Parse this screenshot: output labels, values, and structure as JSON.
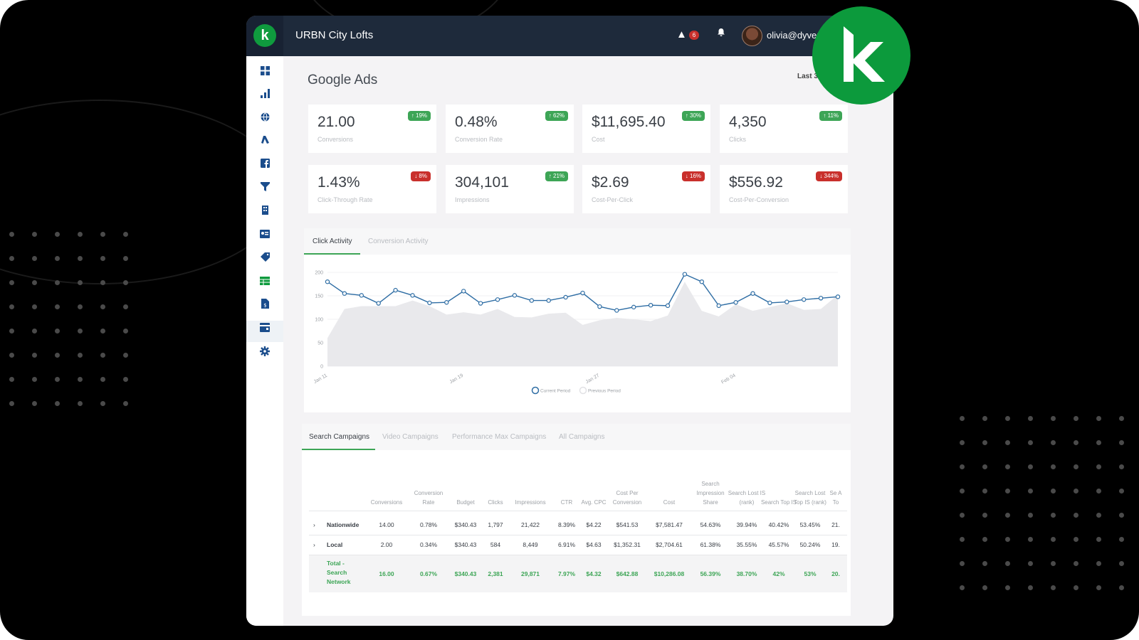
{
  "topbar": {
    "app_title": "URBN City Lofts",
    "alert_count": "6",
    "user_email": "olivia@dyver",
    "alert_icon": "warning-icon",
    "bell_icon": "bell-icon",
    "logo_letter": "k"
  },
  "sidebar": {
    "items": [
      "dashboard-icon",
      "bar-chart-icon",
      "globe-icon",
      "google-ads-icon",
      "facebook-icon",
      "funnel-icon",
      "building-icon",
      "contact-card-icon",
      "tag-icon",
      "table-icon",
      "invoice-icon",
      "storefront-icon",
      "gear-icon"
    ],
    "active_index": 9
  },
  "page": {
    "title": "Google Ads",
    "date_range": "Last 3"
  },
  "kpis": [
    {
      "value": "21.00",
      "label": "Conversions",
      "badge": "↑ 19%",
      "direction": "up"
    },
    {
      "value": "0.48%",
      "label": "Conversion Rate",
      "badge": "↑ 62%",
      "direction": "up"
    },
    {
      "value": "$11,695.40",
      "label": "Cost",
      "badge": "↑ 30%",
      "direction": "up"
    },
    {
      "value": "4,350",
      "label": "Clicks",
      "badge": "↑ 11%",
      "direction": "up"
    },
    {
      "value": "1.43%",
      "label": "Click-Through Rate",
      "badge": "↓ 8%",
      "direction": "down"
    },
    {
      "value": "304,101",
      "label": "Impressions",
      "badge": "↑ 21%",
      "direction": "up"
    },
    {
      "value": "$2.69",
      "label": "Cost-Per-Click",
      "badge": "↓ 16%",
      "direction": "down"
    },
    {
      "value": "$556.92",
      "label": "Cost-Per-Conversion",
      "badge": "↓ 344%",
      "direction": "down"
    }
  ],
  "chart_tabs": [
    "Click Activity",
    "Conversion Activity"
  ],
  "chart_data": {
    "type": "line",
    "x_tick_labels": [
      "Jan 11",
      "Jan 19",
      "Jan 27",
      "Feb 04"
    ],
    "y_ticks": [
      0,
      50,
      100,
      150,
      200
    ],
    "ylim": [
      0,
      200
    ],
    "series": [
      {
        "name": "Current Period",
        "type": "line",
        "color": "#2e6da4",
        "values": [
          180,
          155,
          151,
          134,
          162,
          151,
          135,
          136,
          160,
          134,
          142,
          151,
          140,
          140,
          147,
          156,
          127,
          119,
          126,
          130,
          129,
          196,
          180,
          129,
          136,
          155,
          135,
          137,
          142,
          145,
          148
        ]
      },
      {
        "name": "Previous Period",
        "type": "area",
        "color": "#e9e9ec",
        "values": [
          60,
          122,
          128,
          128,
          128,
          140,
          128,
          110,
          115,
          110,
          122,
          105,
          104,
          112,
          114,
          88,
          98,
          103,
          100,
          96,
          108,
          180,
          118,
          106,
          132,
          118,
          126,
          134,
          120,
          122,
          152
        ]
      }
    ],
    "grid": true,
    "legend": "bottom-center"
  },
  "table_tabs": [
    "Search Campaigns",
    "Video Campaigns",
    "Performance Max Campaigns",
    "All Campaigns"
  ],
  "table": {
    "headers": [
      "Conversions",
      "Conversion Rate",
      "Budget",
      "Clicks",
      "Impressions",
      "CTR",
      "Avg. CPC",
      "Cost Per Conversion",
      "Cost",
      "Search Impression Share",
      "Search Lost IS (rank)",
      "Search Top IS",
      "Search Lost Top IS (rank)",
      "Se A To"
    ],
    "rows": [
      {
        "name": "Nationwide",
        "cells": [
          "14.00",
          "0.78%",
          "$340.43",
          "1,797",
          "21,422",
          "8.39%",
          "$4.22",
          "$541.53",
          "$7,581.47",
          "54.63%",
          "39.94%",
          "40.42%",
          "53.45%",
          "21."
        ]
      },
      {
        "name": "Local",
        "cells": [
          "2.00",
          "0.34%",
          "$340.43",
          "584",
          "8,449",
          "6.91%",
          "$4.63",
          "$1,352.31",
          "$2,704.61",
          "61.38%",
          "35.55%",
          "45.57%",
          "50.24%",
          "19."
        ]
      }
    ],
    "total": {
      "name": "Total - Search Network",
      "cells": [
        "16.00",
        "0.67%",
        "$340.43",
        "2,381",
        "29,871",
        "7.97%",
        "$4.32",
        "$642.88",
        "$10,286.08",
        "56.39%",
        "38.70%",
        "42%",
        "53%",
        "20."
      ]
    }
  },
  "colors": {
    "topbar": "#1e2a3b",
    "accent_green": "#3da556",
    "down_red": "#c9302c",
    "line_blue": "#2e6da4",
    "brand_green": "#0c9a3c"
  }
}
